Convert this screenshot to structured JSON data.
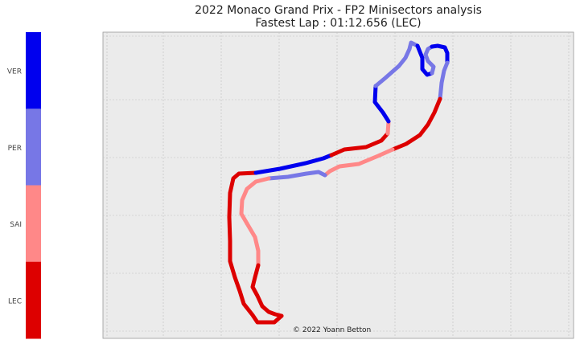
{
  "title": {
    "line1": "2022 Monaco Grand Prix - FP2 Minisectors analysis",
    "line2": "Fastest Lap : 01:12.656 (LEC)"
  },
  "credit": "© 2022 Yoann Betton",
  "colors": {
    "background": "#ebebeb",
    "grid": "#bdbdbd"
  },
  "chart_data": {
    "type": "line",
    "title": "2022 Monaco Grand Prix - FP2 Minisectors analysis",
    "subtitle": "Fastest Lap : 01:12.656 (LEC)",
    "xlabel": "",
    "ylabel": "",
    "grid": true,
    "legend": {
      "position": "left",
      "kind": "colorbar",
      "entries": [
        {
          "driver": "VER",
          "color": "#0000ee"
        },
        {
          "driver": "PER",
          "color": "#7777e6"
        },
        {
          "driver": "SAI",
          "color": "#ff8888"
        },
        {
          "driver": "LEC",
          "color": "#dd0000"
        }
      ]
    },
    "segments": [
      {
        "driver": "LEC",
        "points": [
          [
            350,
            393
          ],
          [
            341,
            401
          ],
          [
            320,
            401
          ],
          [
            314,
            392
          ],
          [
            303,
            378
          ],
          [
            298,
            362
          ],
          [
            292,
            345
          ],
          [
            286,
            325
          ],
          [
            286,
            300
          ],
          [
            285,
            270
          ],
          [
            286,
            240
          ],
          [
            290,
            222
          ],
          [
            297,
            216
          ],
          [
            318,
            215
          ]
        ]
      },
      {
        "driver": "VER",
        "points": [
          [
            318,
            215
          ],
          [
            348,
            210
          ],
          [
            380,
            203
          ],
          [
            402,
            197
          ],
          [
            412,
            193
          ]
        ]
      },
      {
        "driver": "LEC",
        "points": [
          [
            412,
            193
          ],
          [
            428,
            186
          ],
          [
            455,
            183
          ],
          [
            474,
            175
          ],
          [
            482,
            166
          ]
        ]
      },
      {
        "driver": "SAI",
        "points": [
          [
            482,
            166
          ],
          [
            483,
            151
          ]
        ]
      },
      {
        "driver": "VER",
        "points": [
          [
            483,
            151
          ],
          [
            476,
            140
          ],
          [
            466,
            127
          ],
          [
            467,
            107
          ]
        ]
      },
      {
        "driver": "PER",
        "points": [
          [
            467,
            107
          ],
          [
            479,
            97
          ],
          [
            496,
            82
          ],
          [
            504,
            72
          ],
          [
            509,
            61
          ],
          [
            511,
            53
          ],
          [
            519,
            57
          ]
        ]
      },
      {
        "driver": "VER",
        "points": [
          [
            519,
            57
          ],
          [
            525,
            72
          ],
          [
            525,
            86
          ],
          [
            531,
            93
          ],
          [
            537,
            91
          ]
        ]
      },
      {
        "driver": "PER",
        "points": [
          [
            537,
            91
          ],
          [
            539,
            83
          ],
          [
            532,
            76
          ],
          [
            529,
            68
          ],
          [
            532,
            61
          ],
          [
            537,
            58
          ]
        ]
      },
      {
        "driver": "VER",
        "points": [
          [
            537,
            58
          ],
          [
            544,
            57
          ],
          [
            553,
            59
          ],
          [
            556,
            66
          ],
          [
            556,
            78
          ]
        ]
      },
      {
        "driver": "PER",
        "points": [
          [
            556,
            78
          ],
          [
            552,
            88
          ],
          [
            549,
            103
          ],
          [
            547,
            123
          ]
        ]
      },
      {
        "driver": "LEC",
        "points": [
          [
            547,
            123
          ],
          [
            540,
            140
          ],
          [
            532,
            155
          ],
          [
            522,
            168
          ],
          [
            505,
            179
          ],
          [
            488,
            186
          ]
        ]
      },
      {
        "driver": "SAI",
        "points": [
          [
            488,
            186
          ],
          [
            470,
            194
          ],
          [
            446,
            204
          ],
          [
            422,
            207
          ],
          [
            410,
            213
          ],
          [
            404,
            218
          ]
        ]
      },
      {
        "driver": "PER",
        "points": [
          [
            404,
            218
          ],
          [
            396,
            214
          ],
          [
            381,
            216
          ],
          [
            358,
            220
          ],
          [
            334,
            222
          ]
        ]
      },
      {
        "driver": "SAI",
        "points": [
          [
            334,
            222
          ],
          [
            318,
            226
          ],
          [
            307,
            235
          ],
          [
            301,
            249
          ],
          [
            300,
            266
          ],
          [
            307,
            278
          ]
        ]
      },
      {
        "driver": "SAI",
        "points": [
          [
            307,
            278
          ],
          [
            317,
            295
          ],
          [
            321,
            312
          ],
          [
            321,
            330
          ]
        ]
      },
      {
        "driver": "LEC",
        "points": [
          [
            321,
            330
          ],
          [
            317,
            345
          ],
          [
            314,
            357
          ],
          [
            320,
            368
          ],
          [
            326,
            381
          ],
          [
            334,
            388
          ],
          [
            342,
            391
          ],
          [
            350,
            393
          ]
        ]
      }
    ]
  }
}
